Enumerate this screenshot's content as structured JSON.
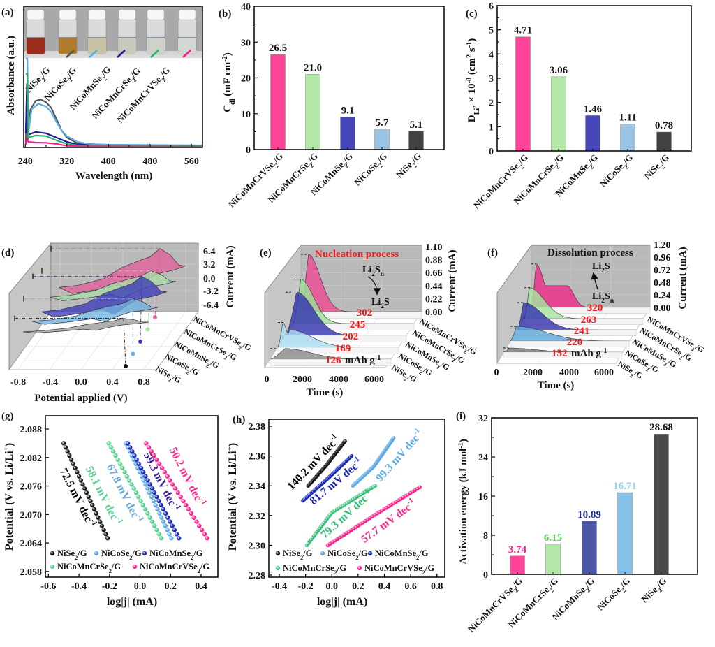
{
  "panel_labels": {
    "a": "(a)",
    "b": "(b)",
    "c": "(c)",
    "d": "(d)",
    "e": "(e)",
    "f": "(f)",
    "g": "(g)",
    "h": "(h)",
    "i": "(i)"
  },
  "chart_data": [
    {
      "panel": "a",
      "type": "line",
      "xlabel": "Wavelength (nm)",
      "ylabel": "Absorbance (a.u.)",
      "xlim": [
        237,
        581
      ],
      "ylim": [
        0,
        1
      ],
      "xticks": [
        "240",
        "320",
        "400",
        "480",
        "560"
      ],
      "grid": false,
      "vial_liquid_colors": [
        "#9a2c1c",
        "#b07b2c",
        "#c9c3a6",
        "#c8cabd",
        "#cdd2cb",
        "#d3d7d3"
      ],
      "sample_labels": [
        "NiSe_{2}/G",
        "NiCoSe_{2}/G",
        "NiCoMnSe_{2}/G",
        "NiCoMnCrSe_{2}/G",
        "NiCoMnCrVSe_{2}/G"
      ],
      "series": [
        {
          "name": "NiSe_{2}/G",
          "color": "#555555",
          "points": [
            [
              241,
              0.02
            ],
            [
              243,
              0.45
            ],
            [
              245,
              0.06
            ],
            [
              250,
              0.27
            ],
            [
              260,
              0.33
            ],
            [
              270,
              0.34
            ],
            [
              280,
              0.32
            ],
            [
              290,
              0.28
            ],
            [
              300,
              0.2
            ],
            [
              310,
              0.12
            ],
            [
              320,
              0.07
            ],
            [
              340,
              0.03
            ],
            [
              360,
              0.02
            ],
            [
              400,
              0.015
            ],
            [
              581,
              0.01
            ]
          ]
        },
        {
          "name": "NiCoSe_{2}/G",
          "color": "#5aaee8",
          "points": [
            [
              241,
              0.63
            ],
            [
              244,
              0.63
            ],
            [
              246,
              0.1
            ],
            [
              252,
              0.27
            ],
            [
              265,
              0.31
            ],
            [
              280,
              0.29
            ],
            [
              290,
              0.25
            ],
            [
              300,
              0.18
            ],
            [
              310,
              0.12
            ],
            [
              320,
              0.08
            ],
            [
              340,
              0.04
            ],
            [
              360,
              0.025
            ],
            [
              400,
              0.02
            ],
            [
              581,
              0.015
            ]
          ]
        },
        {
          "name": "NiCoMnSe_{2}/G",
          "color": "#1a1a9c",
          "points": [
            [
              241,
              0.1
            ],
            [
              243,
              0.4
            ],
            [
              246,
              0.09
            ],
            [
              260,
              0.11
            ],
            [
              280,
              0.1
            ],
            [
              300,
              0.07
            ],
            [
              320,
              0.04
            ],
            [
              340,
              0.02
            ],
            [
              400,
              0.01
            ],
            [
              581,
              0.008
            ]
          ]
        },
        {
          "name": "NiCoMnCrSe_{2}/G",
          "color": "#2fb36a",
          "points": [
            [
              241,
              0.52
            ],
            [
              244,
              0.52
            ],
            [
              246,
              0.07
            ],
            [
              260,
              0.085
            ],
            [
              280,
              0.08
            ],
            [
              300,
              0.05
            ],
            [
              320,
              0.025
            ],
            [
              340,
              0.015
            ],
            [
              581,
              0.008
            ]
          ]
        },
        {
          "name": "NiCoMnCrVSe_{2}/G",
          "color": "#ff1a8c",
          "points": [
            [
              241,
              0.02
            ],
            [
              243,
              0.06
            ],
            [
              246,
              0.04
            ],
            [
              260,
              0.035
            ],
            [
              280,
              0.033
            ],
            [
              300,
              0.025
            ],
            [
              320,
              0.012
            ],
            [
              340,
              0.008
            ],
            [
              581,
              0.005
            ]
          ]
        }
      ]
    },
    {
      "panel": "b",
      "type": "bar",
      "categories": [
        "NiCoMnCrVSe_{2}/G",
        "NiCoMnCrSe_{2}/G",
        "NiCoMnSe_{2}/G",
        "NiCoSe_{2}/G",
        "NiSe_{2}/G"
      ],
      "values": [
        26.5,
        21.0,
        9.1,
        5.7,
        5.1
      ],
      "value_labels": [
        "26.5",
        "21.0",
        "9.1",
        "5.7",
        "5.1"
      ],
      "colors": [
        "#ff4499",
        "#b3e8a8",
        "#4646b8",
        "#9dc3e2",
        "#424242"
      ],
      "value_label_colors": [
        "#111111",
        "#111111",
        "#111111",
        "#111111",
        "#111111"
      ],
      "ylabel": "C_{dl} (mF cm^{-2})",
      "ylim": [
        0,
        40
      ],
      "yticks": [
        "0",
        "10",
        "20",
        "30",
        "40"
      ]
    },
    {
      "panel": "c",
      "type": "bar",
      "categories": [
        "NiCoMnCrVSe_{2}/G",
        "NiCoMnCrSe_{2}/G",
        "NiCoMnSe_{2}/G",
        "NiCoSe_{2}/G",
        "NiSe_{2}/G"
      ],
      "values": [
        4.71,
        3.06,
        1.46,
        1.11,
        0.78
      ],
      "value_labels": [
        "4.71",
        "3.06",
        "1.46",
        "1.11",
        "0.78"
      ],
      "colors": [
        "#ff4499",
        "#b3e8a8",
        "#4646b8",
        "#9dc3e2",
        "#424242"
      ],
      "value_label_colors": [
        "#111111",
        "#111111",
        "#111111",
        "#111111",
        "#111111"
      ],
      "ylabel": "D_{Li^{+}} × 10^{-8} (cm^{2} s^{-1})",
      "ylim": [
        0,
        6
      ],
      "yticks": [
        "0",
        "1",
        "2",
        "3",
        "4",
        "5",
        "6"
      ]
    },
    {
      "panel": "d",
      "type": "line3d",
      "xlabel": "Potential applied (V)",
      "zlabel": "Current (mA)",
      "xticks": [
        "-0.8",
        "-0.4",
        "0.0",
        "0.4",
        "0.8"
      ],
      "zticks": [
        "6.4",
        "3.2",
        "0.0",
        "-3.2",
        "-6.4"
      ],
      "series": [
        {
          "name": "NiCoMnCrVSe_{2}/G",
          "color": "#e0609a"
        },
        {
          "name": "NiCoMnCrSe_{2}/G",
          "color": "#a8dca8"
        },
        {
          "name": "NiCoMnSe_{2}/G",
          "color": "#3b3bb8"
        },
        {
          "name": "NiCoSe_{2}/G",
          "color": "#6fb2e0"
        },
        {
          "name": "NiSe_{2}/G",
          "color": "#9a9a9a"
        }
      ]
    },
    {
      "panel": "e",
      "type": "area3d",
      "title": "Nucleation process",
      "reaction_from": "Li_{2}S_{n}",
      "reaction_to": "Li_{2}S",
      "xlabel": "Time (s)",
      "zlabel": "Current (mA)",
      "xticks": [
        "0",
        "2000",
        "4000",
        "6000"
      ],
      "zticks": [
        "1.10",
        "0.88",
        "0.66",
        "0.44",
        "0.22",
        "0.00"
      ],
      "capacity_unit": "mAh g^{-1}",
      "series": [
        {
          "name": "NiCoMnCrVSe_{2}/G",
          "color": "#ee4d95",
          "capacity": "302",
          "peak_current_mA": 0.97
        },
        {
          "name": "NiCoMnCrSe_{2}/G",
          "color": "#9fe09a",
          "capacity": "245",
          "peak_current_mA": 0.75
        },
        {
          "name": "NiCoMnSe_{2}/G",
          "color": "#3636b0",
          "capacity": "202",
          "peak_current_mA": 0.73
        },
        {
          "name": "NiCoSe_{2}/G",
          "color": "#a9dcf2",
          "capacity": "169",
          "peak_current_mA": 0.42
        },
        {
          "name": "NiSe_{2}/G",
          "color": "#8a8a8a",
          "capacity": "126",
          "peak_current_mA": 0.18
        }
      ]
    },
    {
      "panel": "f",
      "type": "area3d",
      "title": "Dissolution process",
      "reaction_from": "Li_{2}S",
      "reaction_to": "Li_{2}S_{n}",
      "xlabel": "Time (s)",
      "zlabel": "Current (mA)",
      "xticks": [
        "0",
        "2000",
        "4000",
        "6000"
      ],
      "zticks": [
        "1.20",
        "0.96",
        "0.72",
        "0.48",
        "0.24",
        "0.00"
      ],
      "capacity_unit": "mAh g^{-1}",
      "series": [
        {
          "name": "NiCoMnCrVSe_{2}/G",
          "color": "#ee2d8a",
          "capacity": "320",
          "peak_current_mA": 0.83
        },
        {
          "name": "NiCoMnCrSe_{2}/G",
          "color": "#a8e4a0",
          "capacity": "263",
          "peak_current_mA": 0.59
        },
        {
          "name": "NiCoMnSe_{2}/G",
          "color": "#3636b0",
          "capacity": "241",
          "peak_current_mA": 0.52
        },
        {
          "name": "NiCoSe_{2}/G",
          "color": "#5fa8dc",
          "capacity": "220",
          "peak_current_mA": 0.28
        },
        {
          "name": "NiSe_{2}/G",
          "color": "#777777",
          "capacity": "152",
          "peak_current_mA": 0.08
        }
      ]
    },
    {
      "panel": "g",
      "type": "scatter",
      "xlabel": "log|j| (mA)",
      "ylabel": "Potential (V vs. Li/Li^{+})",
      "xlim": [
        -0.62,
        0.51
      ],
      "ylim": [
        2.0568,
        2.0908
      ],
      "xticks": [
        "-0.6",
        "-0.4",
        "-0.2",
        "0.0",
        "0.2",
        "0.4"
      ],
      "yticks": [
        "2.058",
        "2.064",
        "2.070",
        "2.076",
        "2.082",
        "2.088"
      ],
      "legend": "bottom",
      "series": [
        {
          "name": "NiSe_{2}/G",
          "color": "#1a1a1a",
          "points": [
            [
              -0.5,
              2.085
            ],
            [
              -0.212,
              2.065
            ]
          ],
          "slope_label": "72.5 mV dec^{-1}",
          "label_color": "#000000"
        },
        {
          "name": "NiCoSe_{2}/G",
          "color": "#5aa8e6",
          "points": [
            [
              -0.092,
              2.085
            ],
            [
              0.205,
              2.065
            ]
          ],
          "slope_label": "67.8 mV dec^{-1}",
          "label_color": "#6aa6d6"
        },
        {
          "name": "NiCoMnSe_{2}/G",
          "color": "#1a2ab8",
          "points": [
            [
              -0.08,
              2.085
            ],
            [
              0.255,
              2.065
            ]
          ],
          "slope_label": "59.3 mV dec^{-1}",
          "label_color": "#3b1fa0"
        },
        {
          "name": "NiCoMnCrSe_{2}/G",
          "color": "#58d08e",
          "points": [
            [
              -0.205,
              2.085
            ],
            [
              0.14,
              2.065
            ]
          ],
          "slope_label": "58.1 mV dec^{-1}",
          "label_color": "#5ccf94"
        },
        {
          "name": "NiCoMnCrVSe_{2}/G",
          "color": "#ff1f8a",
          "points": [
            [
              0.04,
              2.085
            ],
            [
              0.44,
              2.065
            ]
          ],
          "slope_label": "50.2 mV dec^{-1}",
          "label_color": "#ff2a8a"
        }
      ]
    },
    {
      "panel": "h",
      "type": "scatter",
      "xlabel": "log|j| (mA)",
      "ylabel": "Potential (V vs. Li/Li^{+})",
      "xlim": [
        -0.48,
        0.86
      ],
      "ylim": [
        2.2786,
        2.3847
      ],
      "xticks": [
        "-0.4",
        "-0.2",
        "0.0",
        "0.2",
        "0.4",
        "0.6",
        "0.8"
      ],
      "yticks": [
        "2.28",
        "2.30",
        "2.32",
        "2.34",
        "2.36",
        "2.38"
      ],
      "legend": "bottom",
      "series": [
        {
          "name": "NiSe_{2}/G",
          "color": "#1a1a1a",
          "points": [
            [
              -0.18,
              2.34
            ],
            [
              -0.04,
              2.354
            ],
            [
              0.1,
              2.37
            ]
          ],
          "slope_label": "140.2 mV dec^{-1}",
          "label_color": "#000000"
        },
        {
          "name": "NiCoSe_{2}/G",
          "color": "#5aa8e6",
          "points": [
            [
              0.16,
              2.34
            ],
            [
              0.32,
              2.353
            ],
            [
              0.47,
              2.372
            ]
          ],
          "slope_label": "99.3 mV dec^{-1}",
          "label_color": "#5aaee6"
        },
        {
          "name": "NiCoMnSe_{2}/G",
          "color": "#1a2ab8",
          "points": [
            [
              -0.22,
              2.33
            ],
            [
              -0.03,
              2.345
            ],
            [
              0.15,
              2.36
            ]
          ],
          "slope_label": "81.7 mV dec^{-1}",
          "label_color": "#1a22b0"
        },
        {
          "name": "NiCoMnCrSe_{2}/G",
          "color": "#38c07a",
          "points": [
            [
              -0.19,
              2.3
            ],
            [
              0.0,
              2.322
            ],
            [
              0.33,
              2.34
            ]
          ],
          "slope_label": "79.3 mV dec^{-1}",
          "label_color": "#2fbf73"
        },
        {
          "name": "NiCoMnCrVSe_{2}/G",
          "color": "#ff1f8a",
          "points": [
            [
              -0.03,
              2.3
            ],
            [
              0.32,
              2.32
            ],
            [
              0.67,
              2.339
            ]
          ],
          "slope_label": "57.7 mV dec^{-1}",
          "label_color": "#ff2a8a"
        }
      ]
    },
    {
      "panel": "i",
      "type": "bar",
      "categories": [
        "NiCoMnCrVSe_{2}/G",
        "NiCoMnCrSe_{2}/G",
        "NiCoMnSe_{2}/G",
        "NiCoSe_{2}/G",
        "NiSe_{2}/G"
      ],
      "values": [
        3.74,
        6.15,
        10.89,
        16.71,
        28.68
      ],
      "value_labels": [
        "3.74",
        "6.15",
        "10.89",
        "16.71",
        "28.68"
      ],
      "colors": [
        "#ff4499",
        "#b3e8a8",
        "#4c56a6",
        "#86c0e8",
        "#4a4a4a"
      ],
      "value_label_colors": [
        "#ff1a8c",
        "#5ccc55",
        "#1a2a8c",
        "#8fd4f2",
        "#111111"
      ],
      "ylabel": "Activation energy (kJ mol^{-1})",
      "ylim": [
        0,
        32
      ],
      "yticks": [
        "0",
        "8",
        "16",
        "24",
        "32"
      ]
    }
  ]
}
